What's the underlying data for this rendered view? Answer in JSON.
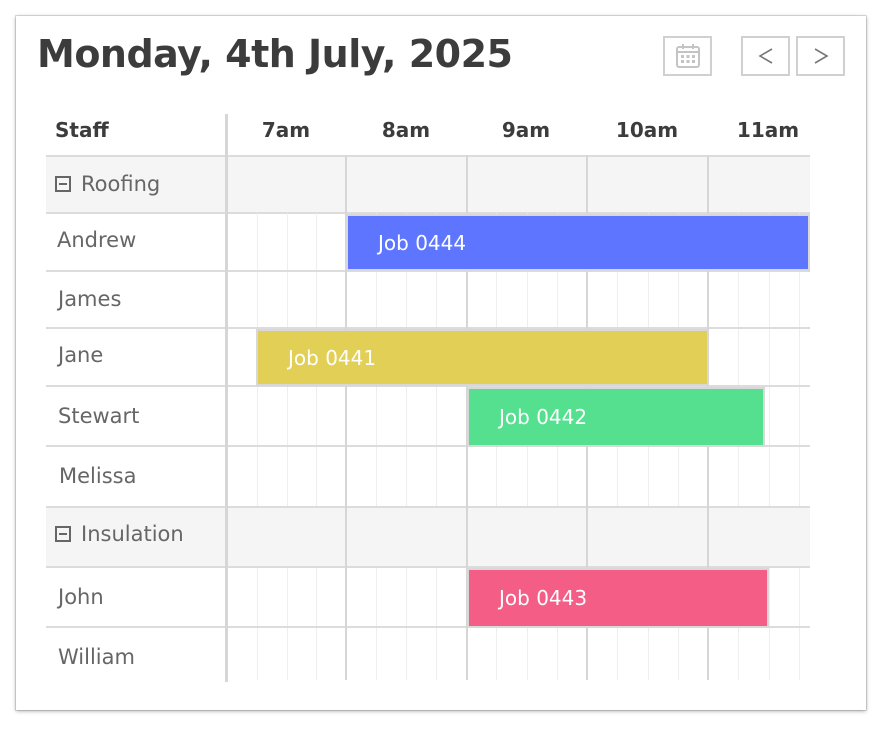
{
  "header": {
    "title": "Monday, 4th July, 2025",
    "calendar_icon": "calendar-icon",
    "prev_label": "<",
    "next_label": ">"
  },
  "columns": {
    "staff_label": "Staff",
    "hours": [
      "7am",
      "8am",
      "9am",
      "10am",
      "11am"
    ]
  },
  "groups": [
    {
      "label": "Roofing",
      "toggle_icon": "collapse-icon"
    },
    {
      "label": "Insulation",
      "toggle_icon": "collapse-icon"
    }
  ],
  "staff": [
    "Andrew",
    "James",
    "Jane",
    "Stewart",
    "Melissa",
    "John",
    "William"
  ],
  "jobs": [
    {
      "label": "Job 0444",
      "staff": "Andrew",
      "color": "#5e76ff"
    },
    {
      "label": "Job 0441",
      "staff": "Jane",
      "color": "#e2cf55"
    },
    {
      "label": "Job 0442",
      "staff": "Stewart",
      "color": "#55e08f"
    },
    {
      "label": "Job 0443",
      "staff": "John",
      "color": "#f35d86"
    }
  ],
  "colors": {
    "title": "#3c3c3c",
    "group_bg": "#f5f5f5",
    "grid_line": "#dcdcdc"
  }
}
